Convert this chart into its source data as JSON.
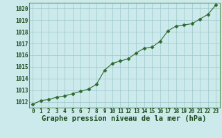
{
  "x": [
    0,
    1,
    2,
    3,
    4,
    5,
    6,
    7,
    8,
    9,
    10,
    11,
    12,
    13,
    14,
    15,
    16,
    17,
    18,
    19,
    20,
    21,
    22,
    23
  ],
  "y": [
    1011.8,
    1012.1,
    1012.2,
    1012.4,
    1012.5,
    1012.7,
    1012.9,
    1013.1,
    1013.5,
    1014.7,
    1015.3,
    1015.5,
    1015.7,
    1016.2,
    1016.6,
    1016.7,
    1017.2,
    1018.1,
    1018.5,
    1018.6,
    1018.7,
    1019.1,
    1019.5,
    1020.3
  ],
  "line_color": "#2d6a2d",
  "marker": "D",
  "marker_size": 2.5,
  "bg_color": "#cce9ec",
  "grid_color": "#9cc9cc",
  "title": "Graphe pression niveau de la mer (hPa)",
  "xlabel_ticks": [
    0,
    1,
    2,
    3,
    4,
    5,
    6,
    7,
    8,
    9,
    10,
    11,
    12,
    13,
    14,
    15,
    16,
    17,
    18,
    19,
    20,
    21,
    22,
    23
  ],
  "ylim": [
    1011.5,
    1020.5
  ],
  "yticks": [
    1012,
    1013,
    1014,
    1015,
    1016,
    1017,
    1018,
    1019,
    1020
  ],
  "title_fontsize": 7.5,
  "tick_fontsize": 5.5,
  "title_color": "#1a4a1a",
  "tick_color": "#1a4a1a",
  "spine_color": "#5a9a5a"
}
